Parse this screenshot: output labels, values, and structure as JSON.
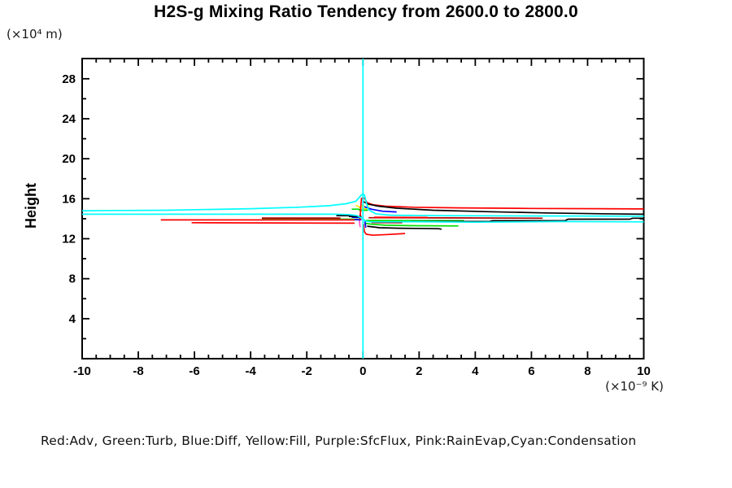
{
  "title": "H2S-g Mixing Ratio Tendency from 2600.0 to 2800.0",
  "chart_data": {
    "type": "line",
    "title": "H2S-g Mixing Ratio Tendency from 2600.0 to 2800.0",
    "ylabel": "Height",
    "ylabel_unit": "(×10⁴ m)",
    "xlabel_unit": "(×10⁻⁹ K)",
    "xlim": [
      -10,
      10
    ],
    "ylim": [
      0,
      30.02
    ],
    "grid": false,
    "frame": true,
    "legend_position": "bottom",
    "legend_note": "Red:Adv, Green:Turb, Blue:Diff, Yellow:Fill, Purple:SfcFlux, Pink:RainEvap,Cyan:Condensation",
    "legend_entries": [
      {
        "color_name": "Red",
        "label": "Adv"
      },
      {
        "color_name": "Green",
        "label": "Turb"
      },
      {
        "color_name": "Blue",
        "label": "Diff"
      },
      {
        "color_name": "Yellow",
        "label": "Fill"
      },
      {
        "color_name": "Purple",
        "label": "SfcFlux"
      },
      {
        "color_name": "Pink",
        "label": "RainEvap"
      },
      {
        "color_name": "Cyan",
        "label": "Condensation"
      }
    ],
    "x_ticks": {
      "major": [
        -10,
        -8,
        -6,
        -4,
        -2,
        0,
        2,
        4,
        6,
        8,
        10
      ],
      "labels": [
        "-10",
        "-8",
        "-6",
        "-4",
        "-2",
        "0",
        "2",
        "4",
        "6",
        "8",
        "10"
      ],
      "minor_step": 0.5
    },
    "y_ticks": {
      "major": [
        4,
        8,
        12,
        16,
        20,
        24,
        28
      ],
      "labels": [
        "4",
        "8",
        "12",
        "16",
        "20",
        "24",
        "28"
      ],
      "minor_step": 2
    },
    "colors": {
      "red": "#ff0000",
      "green": "#00dd00",
      "blue": "#0000ff",
      "yellow": "#ffee00",
      "dark_red": "#aa0000",
      "pink": "#ff50c8",
      "cyan": "#00ffff",
      "black": "#000000"
    },
    "series": [
      {
        "name": "fill-yellow-zigzag",
        "color": "#ffee00",
        "points": [
          [
            -0.25,
            15.35
          ],
          [
            -0.1,
            15.1
          ],
          [
            0,
            15.35
          ],
          [
            0.12,
            15.05
          ],
          [
            0.2,
            15.25
          ],
          [
            0.1,
            14.95
          ],
          [
            -0.05,
            15.05
          ]
        ]
      },
      {
        "name": "rainevap-pink-sliver",
        "color": "#ff50c8",
        "points": [
          [
            -0.1,
            14.5
          ],
          [
            -0.13,
            13.8
          ],
          [
            -0.1,
            13.15
          ]
        ]
      },
      {
        "name": "turb-green-left",
        "color": "#00dd00",
        "points": [
          [
            -3.6,
            13.95
          ],
          [
            -0.1,
            13.95
          ]
        ]
      },
      {
        "name": "turb-green-right",
        "color": "#00dd00",
        "points": [
          [
            0.1,
            13.82
          ],
          [
            3.6,
            13.8
          ]
        ]
      },
      {
        "name": "turb-green-below",
        "color": "#00dd00",
        "points": [
          [
            0.05,
            13.55
          ],
          [
            0.3,
            13.45
          ],
          [
            0.8,
            13.35
          ],
          [
            1.8,
            13.3
          ],
          [
            3.4,
            13.28
          ]
        ]
      },
      {
        "name": "turb-green-bump",
        "color": "#00dd00",
        "points": [
          [
            -0.4,
            14.95
          ],
          [
            -0.15,
            14.95
          ],
          [
            -0.12,
            14.85
          ],
          [
            0.18,
            14.85
          ]
        ]
      },
      {
        "name": "diff-blue-left",
        "color": "#0000ff",
        "points": [
          [
            -0.95,
            14.32
          ],
          [
            -0.4,
            14.32
          ],
          [
            -0.38,
            14.15
          ],
          [
            -0.05,
            14.15
          ]
        ]
      },
      {
        "name": "diff-blue-small",
        "color": "#0000ff",
        "points": [
          [
            -0.3,
            13.9
          ],
          [
            -0.05,
            13.9
          ]
        ]
      },
      {
        "name": "diff-blue-right",
        "color": "#0000ff",
        "points": [
          [
            0.05,
            15.2
          ],
          [
            0.3,
            14.95
          ],
          [
            0.7,
            14.75
          ],
          [
            1.2,
            14.68
          ]
        ]
      },
      {
        "name": "diff-blue-center-vertical",
        "color": "#0000ff",
        "points": [
          [
            0.07,
            13.8
          ],
          [
            0.1,
            13.1
          ]
        ]
      },
      {
        "name": "darkred-left",
        "color": "#aa0000",
        "points": [
          [
            -3.6,
            14.07
          ],
          [
            -0.8,
            14.07
          ]
        ]
      },
      {
        "name": "darkred-right",
        "color": "#aa0000",
        "points": [
          [
            0.2,
            14.1
          ],
          [
            3,
            14.08
          ],
          [
            6.4,
            14.05
          ]
        ]
      },
      {
        "name": "darkred-right-lower",
        "color": "#aa0000",
        "points": [
          [
            0.3,
            13.62
          ],
          [
            1.4,
            13.6
          ]
        ]
      },
      {
        "name": "adv-red-left-upper",
        "color": "#ff0000",
        "points": [
          [
            -7.2,
            13.88
          ],
          [
            -0.3,
            13.88
          ]
        ]
      },
      {
        "name": "adv-red-left-lower",
        "color": "#ff0000",
        "points": [
          [
            -6.1,
            13.6
          ],
          [
            -0.3,
            13.55
          ]
        ]
      },
      {
        "name": "adv-red-main",
        "color": "#ff0000",
        "points": [
          [
            -0.1,
            13.9
          ],
          [
            -0.08,
            15.2
          ],
          [
            -0.05,
            16.05
          ],
          [
            0.05,
            16.05
          ],
          [
            0.15,
            15.6
          ],
          [
            0.35,
            15.4
          ],
          [
            0.8,
            15.25
          ],
          [
            1.8,
            15.15
          ],
          [
            3.5,
            15.08
          ],
          [
            6,
            15.03
          ],
          [
            8.5,
            15.0
          ],
          [
            10,
            14.98
          ]
        ]
      },
      {
        "name": "adv-red-mid",
        "color": "#ff0000",
        "points": [
          [
            0.4,
            14.15
          ],
          [
            2.3,
            14.12
          ]
        ]
      },
      {
        "name": "adv-red-hook-below",
        "color": "#ff0000",
        "points": [
          [
            0.02,
            13.5
          ],
          [
            0.05,
            12.7
          ],
          [
            0.12,
            12.45
          ],
          [
            0.35,
            12.35
          ],
          [
            0.9,
            12.42
          ],
          [
            1.5,
            12.52
          ]
        ]
      },
      {
        "name": "black-net-upper-right",
        "color": "#000000",
        "points": [
          [
            0.02,
            15.7
          ],
          [
            0.2,
            15.45
          ],
          [
            0.55,
            15.25
          ],
          [
            1.2,
            15.05
          ],
          [
            2.5,
            14.85
          ],
          [
            4.5,
            14.7
          ],
          [
            6.5,
            14.58
          ],
          [
            8.5,
            14.5
          ],
          [
            10,
            14.45
          ]
        ]
      },
      {
        "name": "black-net-left",
        "color": "#000000",
        "points": [
          [
            -0.95,
            14.3
          ],
          [
            -0.5,
            14.3
          ],
          [
            -0.48,
            14.22
          ],
          [
            -0.05,
            14.22
          ]
        ]
      },
      {
        "name": "black-net-lower-right",
        "color": "#000000",
        "points": [
          [
            1.7,
            13.72
          ],
          [
            4.5,
            13.72
          ],
          [
            4.6,
            13.8
          ],
          [
            7.2,
            13.8
          ],
          [
            7.3,
            13.95
          ],
          [
            9.5,
            13.95
          ],
          [
            9.6,
            14.05
          ],
          [
            10,
            14.05
          ]
        ]
      },
      {
        "name": "black-net-below-center",
        "color": "#000000",
        "points": [
          [
            0.15,
            13.25
          ],
          [
            0.6,
            13.1
          ],
          [
            1.3,
            13.05
          ],
          [
            2.7,
            13.0
          ],
          [
            2.8,
            12.95
          ]
        ]
      },
      {
        "name": "condensation-cyan-upper",
        "color": "#00ffff",
        "points": [
          [
            -10,
            14.8
          ],
          [
            -7,
            14.85
          ],
          [
            -4,
            15.0
          ],
          [
            -2.3,
            15.15
          ],
          [
            -1.2,
            15.3
          ],
          [
            -0.6,
            15.5
          ],
          [
            -0.25,
            15.75
          ],
          [
            -0.05,
            16.4
          ],
          [
            0.05,
            16.4
          ],
          [
            0.12,
            15.6
          ],
          [
            0.2,
            14.9
          ],
          [
            0.45,
            14.5
          ],
          [
            1,
            14.35
          ],
          [
            3,
            14.3
          ],
          [
            6,
            14.28
          ],
          [
            10,
            14.25
          ]
        ]
      },
      {
        "name": "condensation-cyan-lower",
        "color": "#00ffff",
        "points": [
          [
            -10,
            14.45
          ],
          [
            -1,
            14.45
          ],
          [
            -0.5,
            14.42
          ],
          [
            -0.2,
            14.3
          ],
          [
            0,
            14.0
          ],
          [
            0.1,
            13.75
          ],
          [
            0.3,
            13.68
          ],
          [
            2,
            13.7
          ],
          [
            4,
            13.65
          ],
          [
            7,
            13.72
          ],
          [
            10,
            13.68
          ]
        ]
      },
      {
        "name": "condensation-cyan-vertical",
        "color": "#00ffff",
        "points": [
          [
            0,
            0
          ],
          [
            0,
            30.02
          ]
        ]
      }
    ]
  }
}
